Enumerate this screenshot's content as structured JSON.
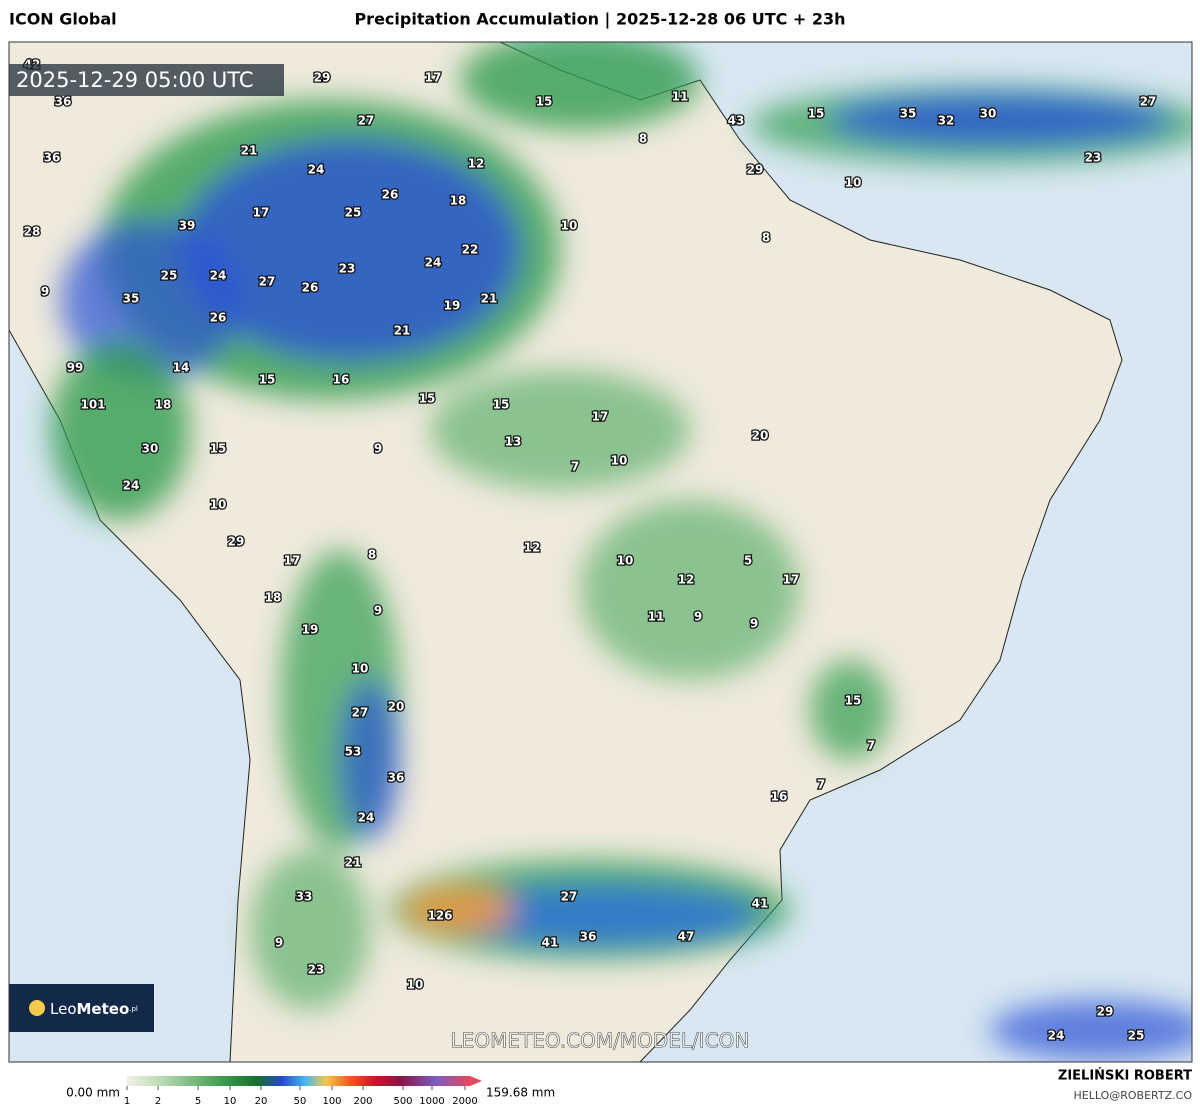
{
  "header": {
    "model": "ICON Global",
    "title": "Precipitation Accumulation | 2025-12-28 06 UTC + 23h"
  },
  "map": {
    "valid_time": "2025-12-29 05:00 UTC",
    "watermark": "LEOMETEO.COM/MODEL/ICON",
    "logo": {
      "leo": "Leo",
      "meteo": "Meteo",
      "suffix": ".pl"
    },
    "labels": [
      42,
      29,
      17,
      36,
      27,
      15,
      11,
      43,
      15,
      35,
      32,
      30,
      27,
      21,
      24,
      12,
      8,
      36,
      29,
      23,
      10,
      26,
      18,
      17,
      25,
      39,
      10,
      28,
      8,
      22,
      24,
      23,
      25,
      24,
      27,
      26,
      9,
      35,
      19,
      21,
      26,
      21,
      99,
      14,
      15,
      16,
      101,
      18,
      15,
      15,
      17,
      20,
      30,
      15,
      9,
      13,
      10,
      7,
      24,
      10,
      29,
      12,
      8,
      17,
      10,
      5,
      12,
      17,
      18,
      9,
      11,
      9,
      9,
      19,
      10,
      15,
      20,
      27,
      7,
      53,
      36,
      7,
      16,
      24,
      21,
      33,
      27,
      41,
      126,
      47,
      36,
      41,
      9,
      23,
      10,
      29,
      24,
      25
    ]
  },
  "legend": {
    "min_label": "0.00 mm",
    "max_label": "159.68 mm",
    "ticks": [
      1,
      2,
      5,
      10,
      20,
      50,
      100,
      200,
      500,
      1000,
      2000
    ]
  },
  "footer": {
    "author": "ZIELIŃSKI ROBERT",
    "email": "HELLO@ROBERTZ.CO"
  }
}
